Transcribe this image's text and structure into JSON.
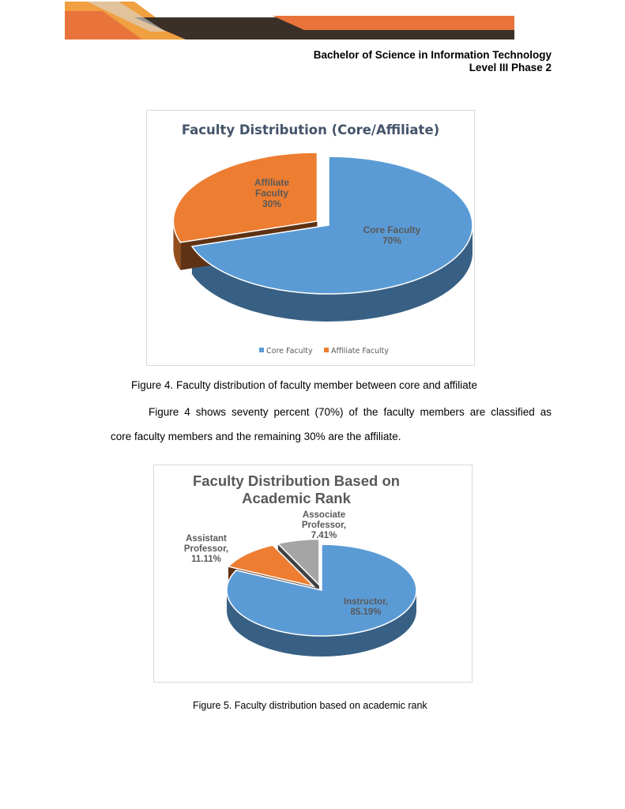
{
  "header": {
    "program": "Bachelor of Science in Information Technology",
    "level": "Level III Phase 2"
  },
  "figure4": {
    "caption": "Figure 4. Faculty distribution of faculty member between core and affiliate",
    "paragraph_line1": "Figure 4 shows seventy percent (70%) of the faculty members are classified as",
    "paragraph_line2": "core faculty members and the remaining 30% are the affiliate."
  },
  "figure5": {
    "caption": "Figure 5. Faculty distribution based on academic rank"
  },
  "colors": {
    "blue": "#5b9bd5",
    "orange": "#ed7d31",
    "gray": "#a5a5a5",
    "banner_orange": "#e8743b",
    "banner_dark": "#3b3028"
  },
  "chart_data": [
    {
      "type": "pie",
      "title": "Faculty Distribution (Core/Affiliate)",
      "three_d": true,
      "legend_position": "bottom",
      "legend": [
        "Core Faculty",
        "Affiliate Faculty"
      ],
      "slices": [
        {
          "label_lines": [
            "Core Faculty",
            "70%"
          ],
          "value": 70,
          "color": "#5b9bd5"
        },
        {
          "label_lines": [
            "Affiliate",
            "Faculty",
            "30%"
          ],
          "value": 30,
          "color": "#ed7d31",
          "exploded": true
        }
      ]
    },
    {
      "type": "pie",
      "title_lines": [
        "Faculty Distribution Based on",
        "Academic Rank"
      ],
      "three_d": true,
      "slices": [
        {
          "label_lines": [
            "Instructor,",
            "85.19%"
          ],
          "value": 85.19,
          "color": "#5b9bd5"
        },
        {
          "label_lines": [
            "Assistant",
            "Professor,",
            "11.11%"
          ],
          "value": 11.11,
          "color": "#ed7d31",
          "exploded": true
        },
        {
          "label_lines": [
            "Associate",
            "Professor,",
            "7.41%"
          ],
          "value": 7.41,
          "color": "#a5a5a5",
          "exploded": true
        }
      ]
    }
  ]
}
